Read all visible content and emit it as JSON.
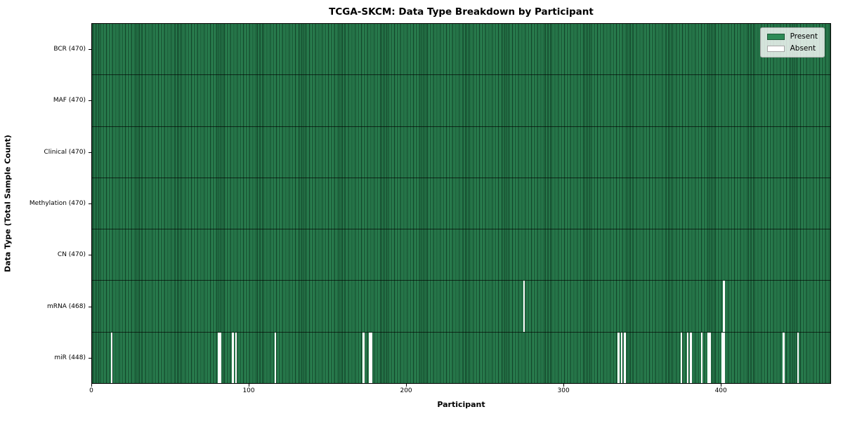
{
  "chart_data": {
    "type": "heatmap",
    "title": "TCGA-SKCM: Data Type Breakdown by Participant",
    "xlabel": "Participant",
    "ylabel": "Data Type (Total Sample Count)",
    "n_participants": 470,
    "xlim": [
      0,
      470
    ],
    "x_ticks": [
      0,
      100,
      200,
      300,
      400
    ],
    "grid": false,
    "legend": {
      "position": "upper right",
      "entries": [
        {
          "label": "Present",
          "color": "#2e8b57"
        },
        {
          "label": "Absent",
          "color": "#ffffff"
        }
      ]
    },
    "colors": {
      "present": "#2e8b57",
      "bar_edge": "#062615",
      "absent": "#ffffff"
    },
    "rows": [
      {
        "label": "BCR (470)",
        "data_type": "BCR",
        "total": 470,
        "absent_participants": []
      },
      {
        "label": "MAF (470)",
        "data_type": "MAF",
        "total": 470,
        "absent_participants": []
      },
      {
        "label": "Clinical (470)",
        "data_type": "Clinical",
        "total": 470,
        "absent_participants": []
      },
      {
        "label": "Methylation (470)",
        "data_type": "Methylation",
        "total": 470,
        "absent_participants": []
      },
      {
        "label": "CN (470)",
        "data_type": "CN",
        "total": 470,
        "absent_participants": []
      },
      {
        "label": "mRNA (468)",
        "data_type": "mRNA",
        "total": 468,
        "absent_participants": [
          274,
          401
        ]
      },
      {
        "label": "miR (448)",
        "data_type": "miR",
        "total": 448,
        "absent_participants": [
          12,
          80,
          81,
          89,
          91,
          116,
          172,
          176,
          177,
          334,
          336,
          338,
          374,
          378,
          380,
          387,
          391,
          392,
          400,
          401,
          439,
          448
        ]
      }
    ]
  }
}
